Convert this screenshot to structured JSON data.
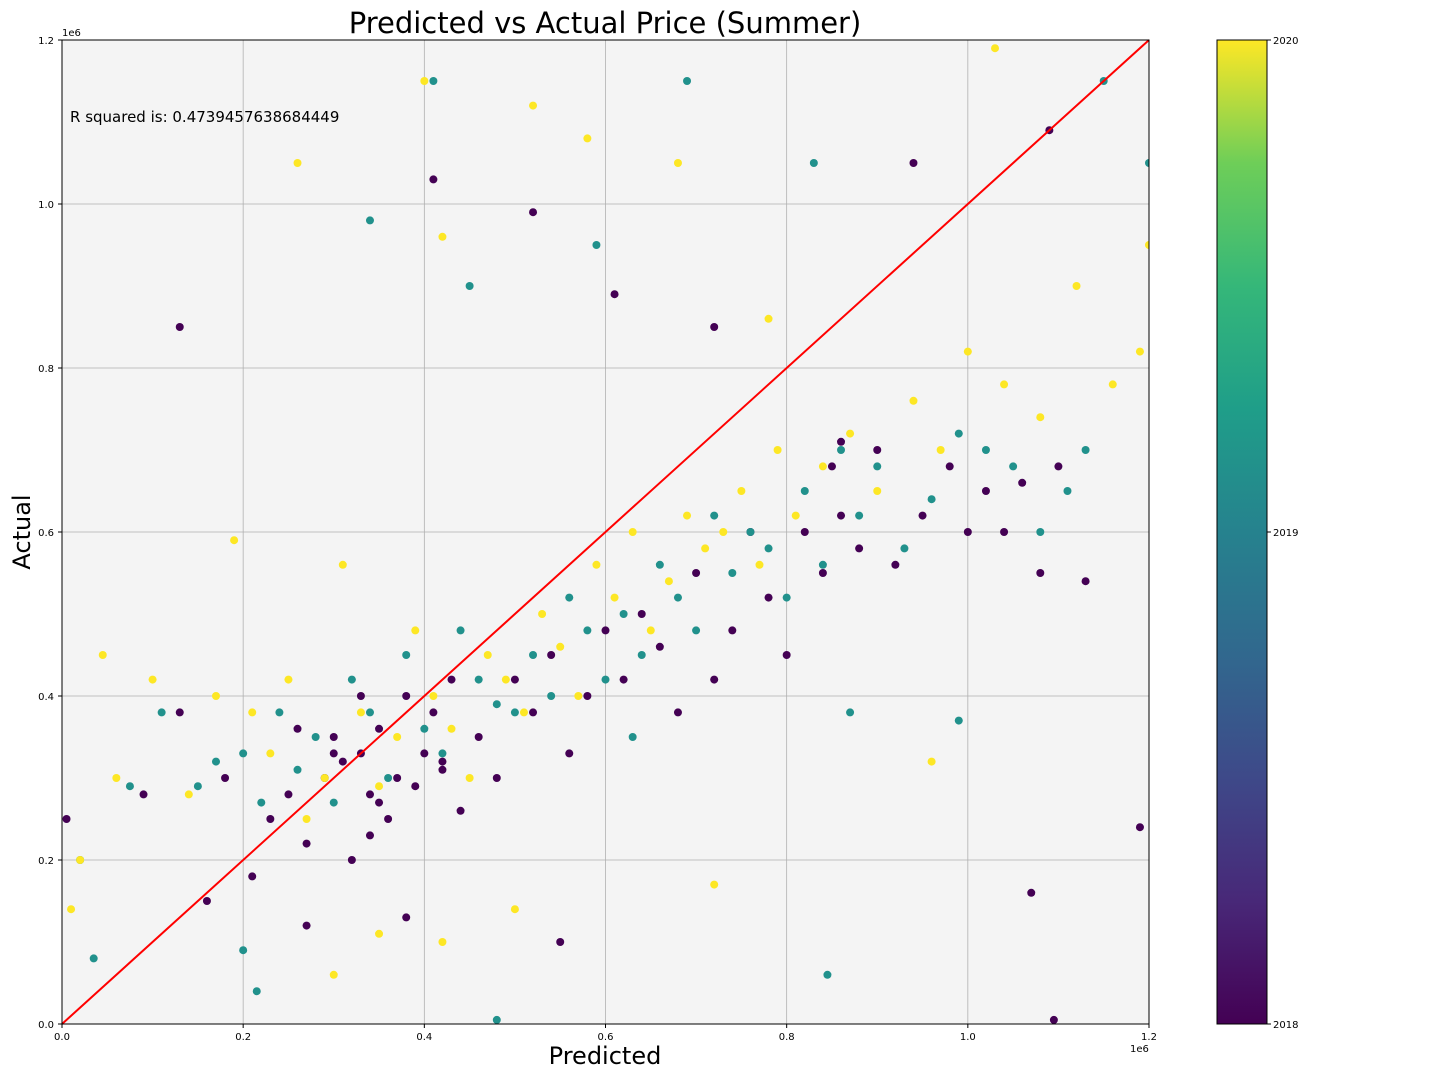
{
  "chart_data": {
    "type": "scatter",
    "title": "Predicted vs Actual Price (Summer)",
    "xlabel": "Predicted",
    "ylabel": "Actual",
    "xlim": [
      0,
      1200000
    ],
    "ylim": [
      0,
      1200000
    ],
    "x_ticks": [
      "0.0",
      "0.2",
      "0.4",
      "0.6",
      "0.8",
      "1.0",
      "1.2"
    ],
    "y_ticks": [
      "0.0",
      "0.2",
      "0.4",
      "0.6",
      "0.8",
      "1.0",
      "1.2"
    ],
    "x_offset_label": "1e6",
    "y_offset_label": "1e6",
    "grid": true,
    "annotation": "R squared is: 0.4739457638684449",
    "reference_line": {
      "from": [
        0,
        0
      ],
      "to": [
        1200000,
        1200000
      ],
      "color": "#ff0000"
    },
    "colorbar": {
      "colormap": "viridis",
      "range": [
        2018,
        2020
      ],
      "tick_labels": [
        "2018",
        "2019",
        "2020"
      ]
    },
    "series": [
      {
        "color_value": 2018,
        "color": "#440154",
        "x": [
          5000,
          90000,
          130000,
          160000,
          180000,
          210000,
          230000,
          250000,
          270000,
          290000,
          300000,
          310000,
          320000,
          330000,
          340000,
          350000,
          360000,
          370000,
          380000,
          390000,
          400000,
          410000,
          420000,
          430000,
          440000,
          460000,
          480000,
          500000,
          520000,
          540000,
          560000,
          580000,
          600000,
          620000,
          640000,
          660000,
          680000,
          700000,
          720000,
          740000,
          760000,
          780000,
          800000,
          820000,
          840000,
          860000,
          880000,
          900000,
          920000,
          950000,
          980000,
          1000000,
          1020000,
          1040000,
          1060000,
          1080000,
          1100000,
          1130000,
          1190000,
          410000,
          520000,
          610000,
          720000,
          850000,
          940000,
          1090000,
          130000,
          270000,
          380000,
          550000,
          860000,
          1070000,
          1095000,
          420000,
          340000,
          260000,
          300000,
          350000,
          330000
        ],
        "y": [
          250000,
          280000,
          850000,
          150000,
          300000,
          180000,
          250000,
          280000,
          220000,
          300000,
          350000,
          320000,
          200000,
          330000,
          280000,
          360000,
          250000,
          300000,
          400000,
          290000,
          330000,
          380000,
          310000,
          420000,
          260000,
          350000,
          300000,
          420000,
          380000,
          450000,
          330000,
          400000,
          480000,
          420000,
          500000,
          460000,
          380000,
          550000,
          420000,
          480000,
          600000,
          520000,
          450000,
          600000,
          550000,
          620000,
          580000,
          700000,
          560000,
          620000,
          680000,
          600000,
          650000,
          600000,
          660000,
          550000,
          680000,
          540000,
          240000,
          1030000,
          990000,
          890000,
          850000,
          680000,
          1050000,
          1090000,
          380000,
          120000,
          130000,
          100000,
          710000,
          160000,
          5000,
          320000,
          230000,
          360000,
          330000,
          270000,
          400000
        ]
      },
      {
        "color_value": 2019,
        "color": "#21918c",
        "x": [
          35000,
          75000,
          110000,
          150000,
          170000,
          200000,
          220000,
          240000,
          260000,
          280000,
          300000,
          320000,
          340000,
          360000,
          380000,
          400000,
          420000,
          440000,
          460000,
          480000,
          500000,
          520000,
          540000,
          560000,
          580000,
          600000,
          620000,
          640000,
          660000,
          680000,
          700000,
          720000,
          740000,
          760000,
          780000,
          800000,
          820000,
          840000,
          860000,
          880000,
          900000,
          930000,
          960000,
          990000,
          1020000,
          1050000,
          1080000,
          1110000,
          1150000,
          1200000,
          215000,
          340000,
          410000,
          450000,
          590000,
          690000,
          830000,
          990000,
          1130000,
          480000,
          845000,
          20000,
          630000,
          870000,
          200000
        ],
        "y": [
          80000,
          290000,
          380000,
          290000,
          320000,
          330000,
          270000,
          380000,
          310000,
          350000,
          270000,
          420000,
          380000,
          300000,
          450000,
          360000,
          330000,
          480000,
          420000,
          390000,
          380000,
          450000,
          400000,
          520000,
          480000,
          420000,
          500000,
          450000,
          560000,
          520000,
          480000,
          620000,
          550000,
          600000,
          580000,
          520000,
          650000,
          560000,
          700000,
          620000,
          680000,
          580000,
          640000,
          720000,
          700000,
          680000,
          600000,
          650000,
          1150000,
          1050000,
          40000,
          980000,
          1150000,
          900000,
          950000,
          1150000,
          1050000,
          370000,
          700000,
          5000,
          60000,
          200000,
          350000,
          380000,
          90000
        ]
      },
      {
        "color_value": 2020,
        "color": "#fde725",
        "x": [
          10000,
          20000,
          45000,
          60000,
          100000,
          140000,
          170000,
          190000,
          210000,
          230000,
          250000,
          270000,
          290000,
          310000,
          330000,
          350000,
          370000,
          390000,
          410000,
          430000,
          450000,
          470000,
          490000,
          510000,
          530000,
          550000,
          570000,
          590000,
          610000,
          630000,
          650000,
          670000,
          690000,
          710000,
          730000,
          750000,
          770000,
          790000,
          810000,
          840000,
          870000,
          900000,
          940000,
          970000,
          1000000,
          1040000,
          1080000,
          1120000,
          1160000,
          1200000,
          260000,
          400000,
          420000,
          520000,
          580000,
          680000,
          780000,
          960000,
          1030000,
          1190000,
          300000,
          720000,
          500000,
          420000,
          350000
        ],
        "y": [
          140000,
          200000,
          450000,
          300000,
          420000,
          280000,
          400000,
          590000,
          380000,
          330000,
          420000,
          250000,
          300000,
          560000,
          380000,
          290000,
          350000,
          480000,
          400000,
          360000,
          300000,
          450000,
          420000,
          380000,
          500000,
          460000,
          400000,
          560000,
          520000,
          600000,
          480000,
          540000,
          620000,
          580000,
          600000,
          650000,
          560000,
          700000,
          620000,
          680000,
          720000,
          650000,
          760000,
          700000,
          820000,
          780000,
          740000,
          900000,
          780000,
          950000,
          1050000,
          1150000,
          960000,
          1120000,
          1080000,
          1050000,
          860000,
          320000,
          1190000,
          820000,
          60000,
          170000,
          140000,
          100000,
          110000
        ]
      }
    ]
  }
}
